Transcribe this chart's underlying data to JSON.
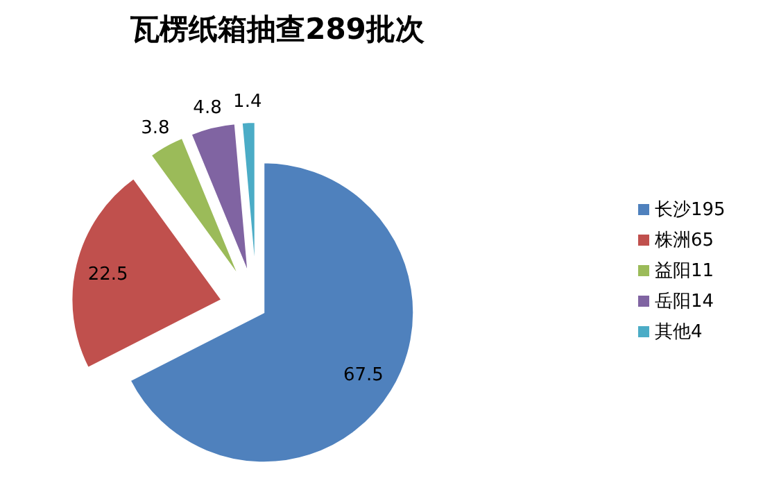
{
  "chart_data": {
    "type": "pie",
    "title": "瓦楞纸箱抽查289批次",
    "categories": [
      "长沙195",
      "株洲65",
      "益阳11",
      "岳阳14",
      "其他4"
    ],
    "values": [
      67.5,
      22.5,
      3.8,
      4.8,
      1.4
    ],
    "colors": [
      "#4f81bd",
      "#c0504d",
      "#9bbb59",
      "#8064a2",
      "#4bacc6"
    ],
    "data_labels": true,
    "legend": "right"
  }
}
